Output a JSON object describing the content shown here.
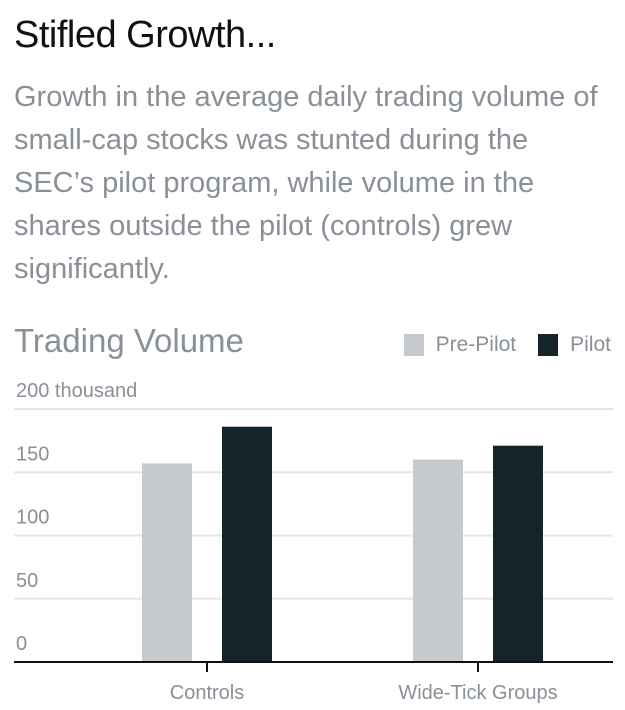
{
  "header": {
    "title": "Stifled Growth...",
    "subtitle": "Growth in the average daily trading volume of small-cap stocks was stunted during the SEC’s pilot program, while volume in the shares outside the pilot (controls) grew significantly."
  },
  "colors": {
    "pre_pilot": "#c6c9cd",
    "pilot": "#14252a",
    "gridline": "#e3e5e7",
    "axis": "#111111",
    "text_muted": "#8a9097"
  },
  "chart_data": {
    "type": "bar",
    "title": "Trading Volume",
    "ylabel": "",
    "xlabel": "",
    "categories": [
      "Controls",
      "Wide-Tick Groups"
    ],
    "series": [
      {
        "name": "Pre-Pilot",
        "values": [
          157,
          160
        ]
      },
      {
        "name": "Pilot",
        "values": [
          186,
          171
        ]
      }
    ],
    "ylim": [
      0,
      200
    ],
    "yticks": [
      0,
      50,
      100,
      150,
      200
    ],
    "ytick_labels": [
      "0",
      "50",
      "100",
      "150",
      "200 thousand"
    ],
    "legend_position": "top-right",
    "grid": true
  }
}
